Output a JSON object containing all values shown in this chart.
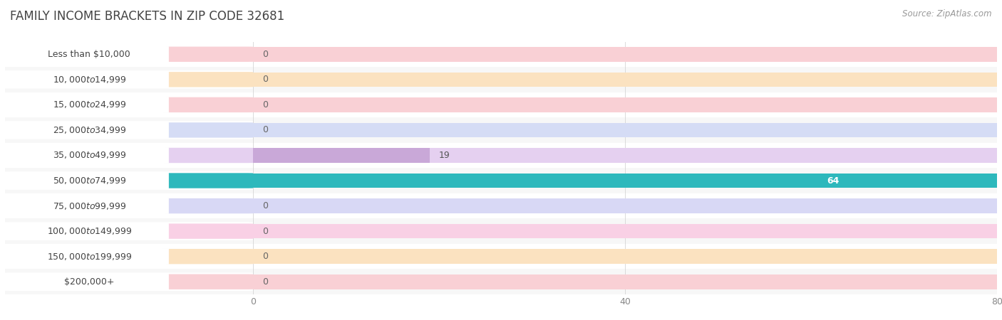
{
  "title": "FAMILY INCOME BRACKETS IN ZIP CODE 32681",
  "source": "Source: ZipAtlas.com",
  "categories": [
    "Less than $10,000",
    "$10,000 to $14,999",
    "$15,000 to $24,999",
    "$25,000 to $34,999",
    "$35,000 to $49,999",
    "$50,000 to $74,999",
    "$75,000 to $99,999",
    "$100,000 to $149,999",
    "$150,000 to $199,999",
    "$200,000+"
  ],
  "values": [
    0,
    0,
    0,
    0,
    19,
    64,
    0,
    0,
    0,
    0
  ],
  "bar_colors": [
    "#f2a0aa",
    "#f5c98a",
    "#f2a0aa",
    "#aab8e8",
    "#c9a8d8",
    "#2db8bc",
    "#b8b8e8",
    "#f2a0bc",
    "#f5c98a",
    "#f2a0aa"
  ],
  "bar_bg_colors": [
    "#f9d0d5",
    "#fbe2c0",
    "#f9d0d5",
    "#d5dcf5",
    "#e5d0f0",
    "#2db8bc",
    "#d8d8f5",
    "#f9d0e5",
    "#fbe2c0",
    "#f9d0d5"
  ],
  "row_colors": [
    "#ffffff",
    "#f7f7f7",
    "#ffffff",
    "#f7f7f7",
    "#ffffff",
    "#f7f7f7",
    "#ffffff",
    "#f7f7f7",
    "#ffffff",
    "#f7f7f7"
  ],
  "xlim": [
    0,
    80
  ],
  "xticks": [
    0,
    40,
    80
  ],
  "background_color": "#ffffff",
  "bar_bg_color": "#e8e8ee",
  "title_fontsize": 12,
  "source_fontsize": 8.5,
  "label_fontsize": 9,
  "value_fontsize": 9,
  "bar_height": 0.58,
  "grid_color": "#cccccc"
}
